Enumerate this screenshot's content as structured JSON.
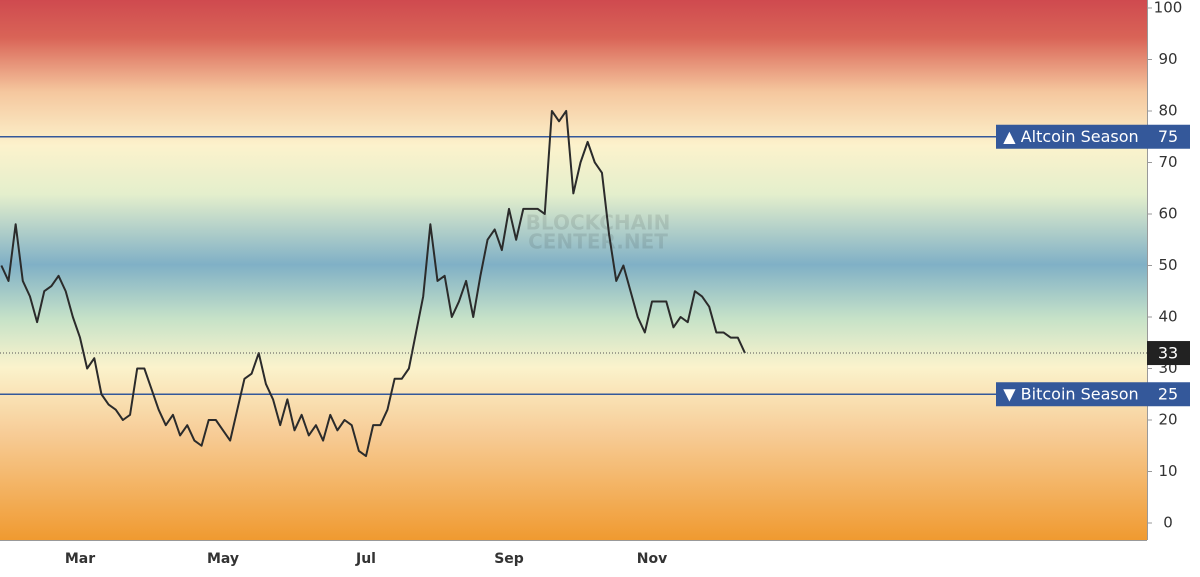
{
  "chart_data": {
    "type": "line",
    "categories": [
      null,
      null,
      null,
      null,
      null,
      null,
      null,
      null,
      null,
      null,
      null,
      "Mar",
      null,
      null,
      null,
      null,
      null,
      null,
      null,
      null,
      null,
      null,
      null,
      null,
      null,
      null,
      null,
      null,
      null,
      null,
      null,
      "May",
      null,
      null,
      null,
      null,
      null,
      null,
      null,
      null,
      null,
      null,
      null,
      null,
      null,
      null,
      null,
      null,
      null,
      null,
      null,
      "Jul",
      null,
      null,
      null,
      null,
      null,
      null,
      null,
      null,
      null,
      null,
      null,
      null,
      null,
      null,
      null,
      null,
      null,
      null,
      null,
      "Sep",
      null,
      null,
      null,
      null,
      null,
      null,
      null,
      null,
      null,
      null,
      null,
      null,
      null,
      null,
      null,
      null,
      null,
      null,
      null,
      "Nov",
      null,
      null,
      null,
      null,
      null,
      null,
      null,
      null,
      null,
      null,
      null,
      null,
      null
    ],
    "values": [
      50,
      47,
      58,
      47,
      44,
      39,
      45,
      46,
      48,
      45,
      40,
      36,
      30,
      32,
      25,
      23,
      22,
      20,
      21,
      30,
      30,
      26,
      22,
      19,
      21,
      17,
      19,
      16,
      15,
      20,
      20,
      18,
      16,
      22,
      28,
      29,
      33,
      27,
      24,
      19,
      24,
      18,
      21,
      17,
      19,
      16,
      21,
      18,
      20,
      19,
      14,
      13,
      19,
      19,
      22,
      28,
      28,
      30,
      37,
      44,
      58,
      47,
      48,
      40,
      43,
      47,
      40,
      48,
      55,
      57,
      53,
      61,
      55,
      61,
      61,
      61,
      60,
      80,
      78,
      80,
      64,
      70,
      74,
      70,
      68,
      56,
      47,
      50,
      45,
      40,
      37,
      43,
      43,
      43,
      38,
      40,
      39,
      45,
      44,
      42,
      37,
      37,
      36,
      36,
      33
    ],
    "color": "#2b2b2b",
    "ylim": [
      -3.3,
      101.55
    ],
    "yticks": [
      0,
      10,
      20,
      30,
      40,
      50,
      60,
      70,
      80,
      90,
      100
    ],
    "reference_lines": [
      {
        "label": "▲ Altcoin Season",
        "value": 75,
        "color": "#34589a"
      },
      {
        "label": "▼ Bitcoin Season",
        "value": 25,
        "color": "#34589a"
      }
    ],
    "watermark": [
      "BLOCKCHAIN",
      "CENTER.NET"
    ]
  }
}
